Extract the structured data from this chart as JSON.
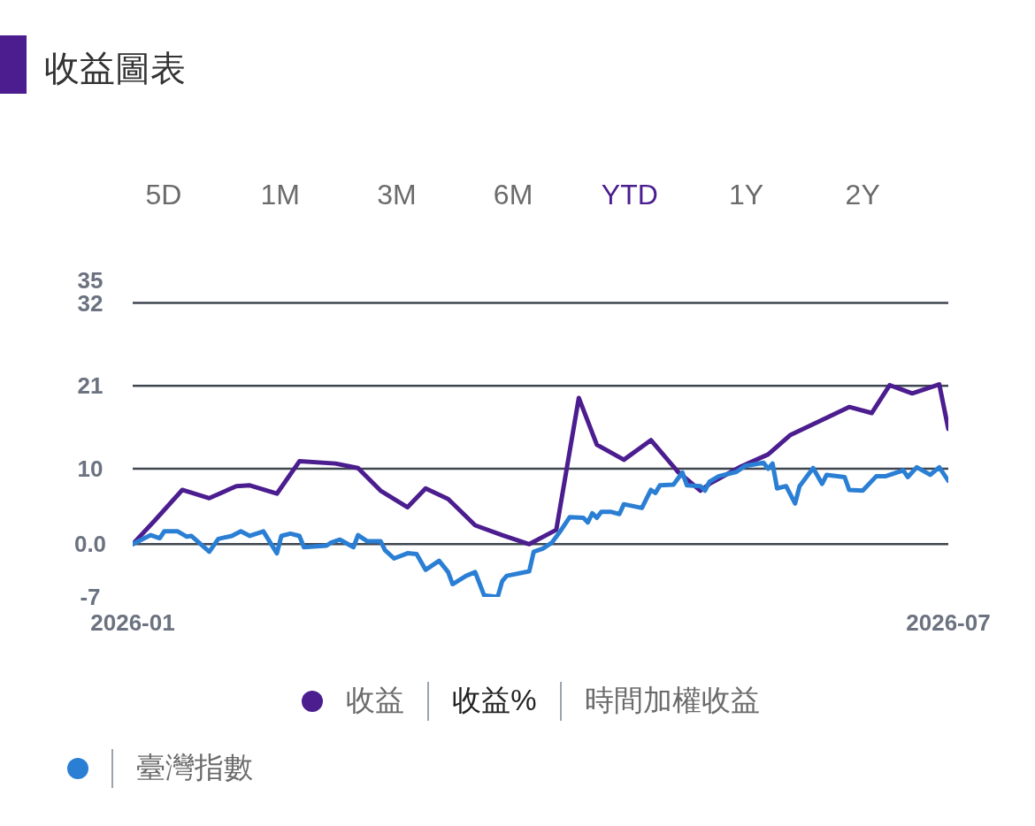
{
  "chart_data": {
    "type": "line",
    "title": "收益圖表",
    "annotations": [
      "5D",
      "1M",
      "3M",
      "6M",
      "YTD",
      "1Y",
      "2Y",
      "收益%",
      "時間加權收益",
      "臺灣指數"
    ],
    "xlim": [
      "2026-01-01",
      "2026-07-01"
    ],
    "xticks": [
      "2026-01",
      "2026-07"
    ],
    "ylim": [
      -7,
      35
    ],
    "yticks": [
      -7,
      {
        "value": 0,
        "label": "0.0"
      },
      10,
      21,
      32,
      35
    ],
    "grid": "y",
    "legend": "bottom",
    "marker": "none",
    "line_style": "solid",
    "series": [
      {
        "name": "收益",
        "color": "#4b1d8f",
        "x": [
          "2026-01-01",
          "2026-01-06",
          "2026-01-12",
          "2026-01-18",
          "2026-01-24",
          "2026-01-27",
          "2026-02-02",
          "2026-02-07",
          "2026-02-15",
          "2026-02-20",
          "2026-02-25",
          "2026-03-03",
          "2026-03-07",
          "2026-03-12",
          "2026-03-18",
          "2026-03-24",
          "2026-03-30",
          "2026-04-05",
          "2026-04-10",
          "2026-04-14",
          "2026-04-20",
          "2026-04-26",
          "2026-05-02",
          "2026-05-07",
          "2026-05-09",
          "2026-05-16",
          "2026-05-22",
          "2026-05-27",
          "2026-06-02",
          "2026-06-09",
          "2026-06-14",
          "2026-06-18",
          "2026-06-23",
          "2026-06-29",
          "2026-07-01"
        ],
        "values": [
          0,
          3.2,
          7.2,
          6.1,
          7.7,
          7.8,
          6.7,
          11.0,
          10.7,
          10.1,
          7.1,
          4.9,
          7.4,
          6.0,
          2.5,
          1.2,
          0,
          1.9,
          19.4,
          13.2,
          11.2,
          13.8,
          9.6,
          7.1,
          8.0,
          10.3,
          11.9,
          14.5,
          16.2,
          18.2,
          17.4,
          21.1,
          20.0,
          21.2,
          15.3
        ]
      },
      {
        "color": "#2a7fd4",
        "x": [
          "2026-01-01",
          "2026-01-05",
          "2026-01-07",
          "2026-01-08",
          "2026-01-11",
          "2026-01-13",
          "2026-01-14",
          "2026-01-18",
          "2026-01-20",
          "2026-01-23",
          "2026-01-25",
          "2026-01-27",
          "2026-01-30",
          "2026-02-02",
          "2026-02-03",
          "2026-02-05",
          "2026-02-07",
          "2026-02-08",
          "2026-02-13",
          "2026-02-14",
          "2026-02-16",
          "2026-02-19",
          "2026-02-20",
          "2026-02-22",
          "2026-02-25",
          "2026-02-26",
          "2026-02-28",
          "2026-03-03",
          "2026-03-05",
          "2026-03-07",
          "2026-03-10",
          "2026-03-12",
          "2026-03-13",
          "2026-03-16",
          "2026-03-18",
          "2026-03-20",
          "2026-03-23",
          "2026-03-24",
          "2026-03-25",
          "2026-03-30",
          "2026-03-31",
          "2026-04-02",
          "2026-04-04",
          "2026-04-06",
          "2026-04-08",
          "2026-04-11",
          "2026-04-12",
          "2026-04-13",
          "2026-04-14",
          "2026-04-15",
          "2026-04-17",
          "2026-04-19",
          "2026-04-20",
          "2026-04-24",
          "2026-04-26",
          "2026-04-27",
          "2026-04-28",
          "2026-05-01",
          "2026-05-03",
          "2026-05-04",
          "2026-05-07",
          "2026-05-08",
          "2026-05-09",
          "2026-05-11",
          "2026-05-15",
          "2026-05-17",
          "2026-05-21",
          "2026-05-22",
          "2026-05-23",
          "2026-05-24",
          "2026-05-26",
          "2026-05-28",
          "2026-05-29",
          "2026-06-01",
          "2026-06-03",
          "2026-06-04",
          "2026-06-08",
          "2026-06-09",
          "2026-06-12",
          "2026-06-15",
          "2026-06-17",
          "2026-06-21",
          "2026-06-22",
          "2026-06-24",
          "2026-06-27",
          "2026-06-29",
          "2026-07-01"
        ],
        "values": [
          0,
          1.2,
          0.8,
          1.7,
          1.7,
          1.0,
          1.1,
          -1.0,
          0.7,
          1.1,
          1.7,
          1.1,
          1.7,
          -1.2,
          1.1,
          1.4,
          1.1,
          -0.4,
          -0.2,
          0.2,
          0.6,
          -0.4,
          1.2,
          0.4,
          0.4,
          -0.8,
          -1.9,
          -1.2,
          -1.3,
          -3.4,
          -2.2,
          -3.7,
          -5.3,
          -4.2,
          -3.7,
          -6.8,
          -7.0,
          -4.9,
          -4.2,
          -3.6,
          -1.0,
          -0.6,
          0.2,
          1.8,
          3.6,
          3.5,
          2.9,
          4.1,
          3.5,
          4.3,
          4.3,
          4.0,
          5.3,
          4.8,
          7.2,
          6.8,
          7.8,
          7.9,
          9.5,
          7.8,
          7.7,
          7.1,
          8.3,
          9.0,
          9.6,
          10.4,
          10.8,
          10.0,
          10.7,
          7.4,
          7.7,
          5.4,
          7.7,
          10.1,
          8.0,
          9.2,
          8.9,
          7.2,
          7.1,
          9.0,
          9.0,
          9.8,
          8.9,
          10.2,
          9.2,
          10.2,
          8.4
        ]
      }
    ]
  }
}
